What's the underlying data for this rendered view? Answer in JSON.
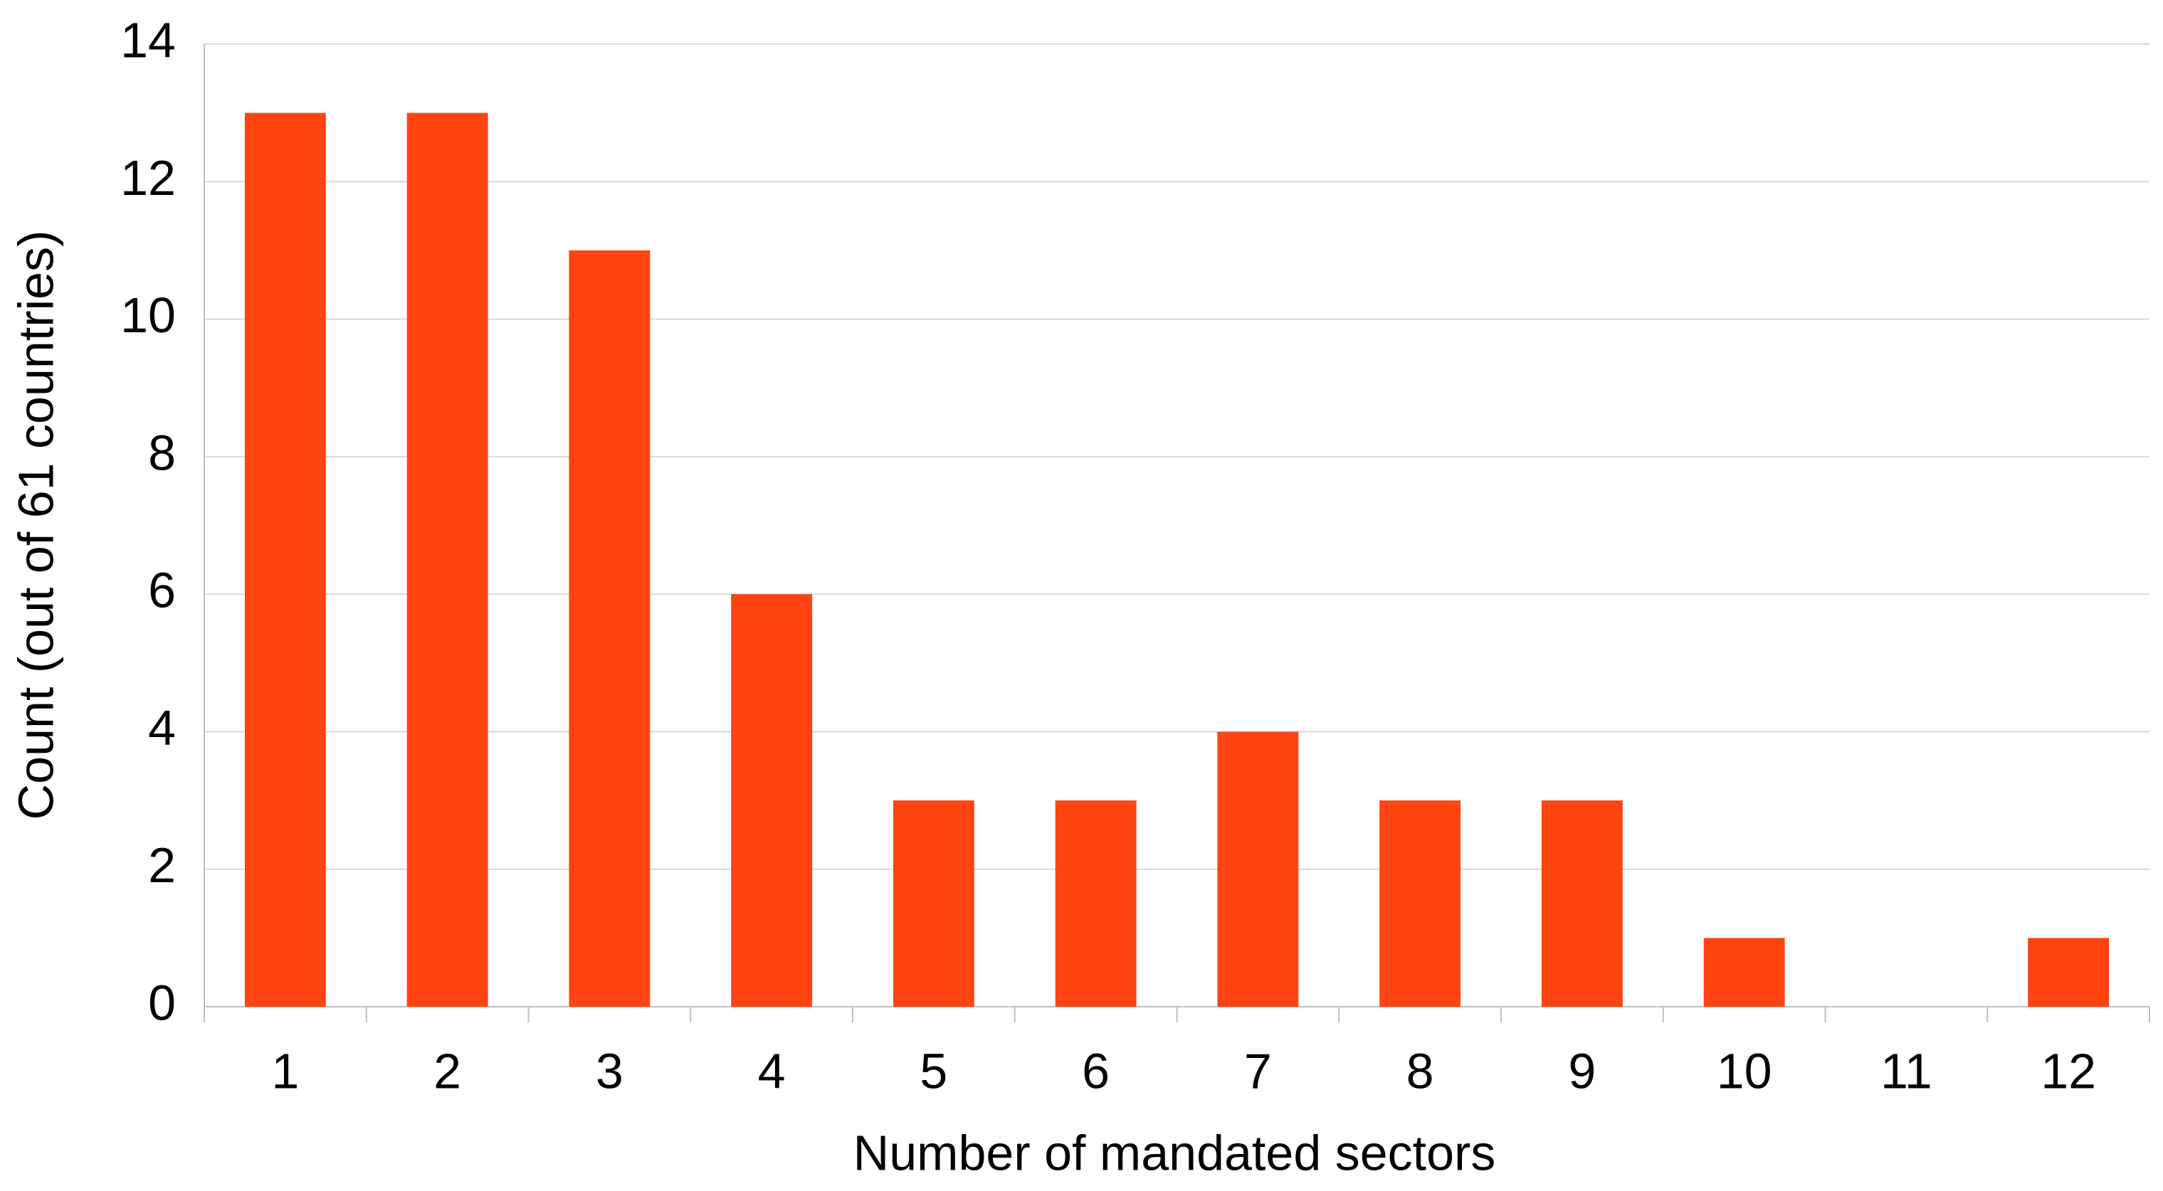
{
  "chart_data": {
    "type": "bar",
    "x_label": "Number of mandated sectors",
    "y_label": "Count (out of 61 countries)",
    "categories": [
      "1",
      "2",
      "3",
      "4",
      "5",
      "6",
      "7",
      "8",
      "9",
      "10",
      "11",
      "12"
    ],
    "values": [
      13,
      13,
      11,
      6,
      3,
      3,
      4,
      3,
      3,
      1,
      0,
      1
    ],
    "color": "#ff4411",
    "ylim": [
      0,
      14
    ],
    "yticks": [
      0,
      2,
      4,
      6,
      8,
      10,
      12,
      14
    ],
    "grid": true
  }
}
